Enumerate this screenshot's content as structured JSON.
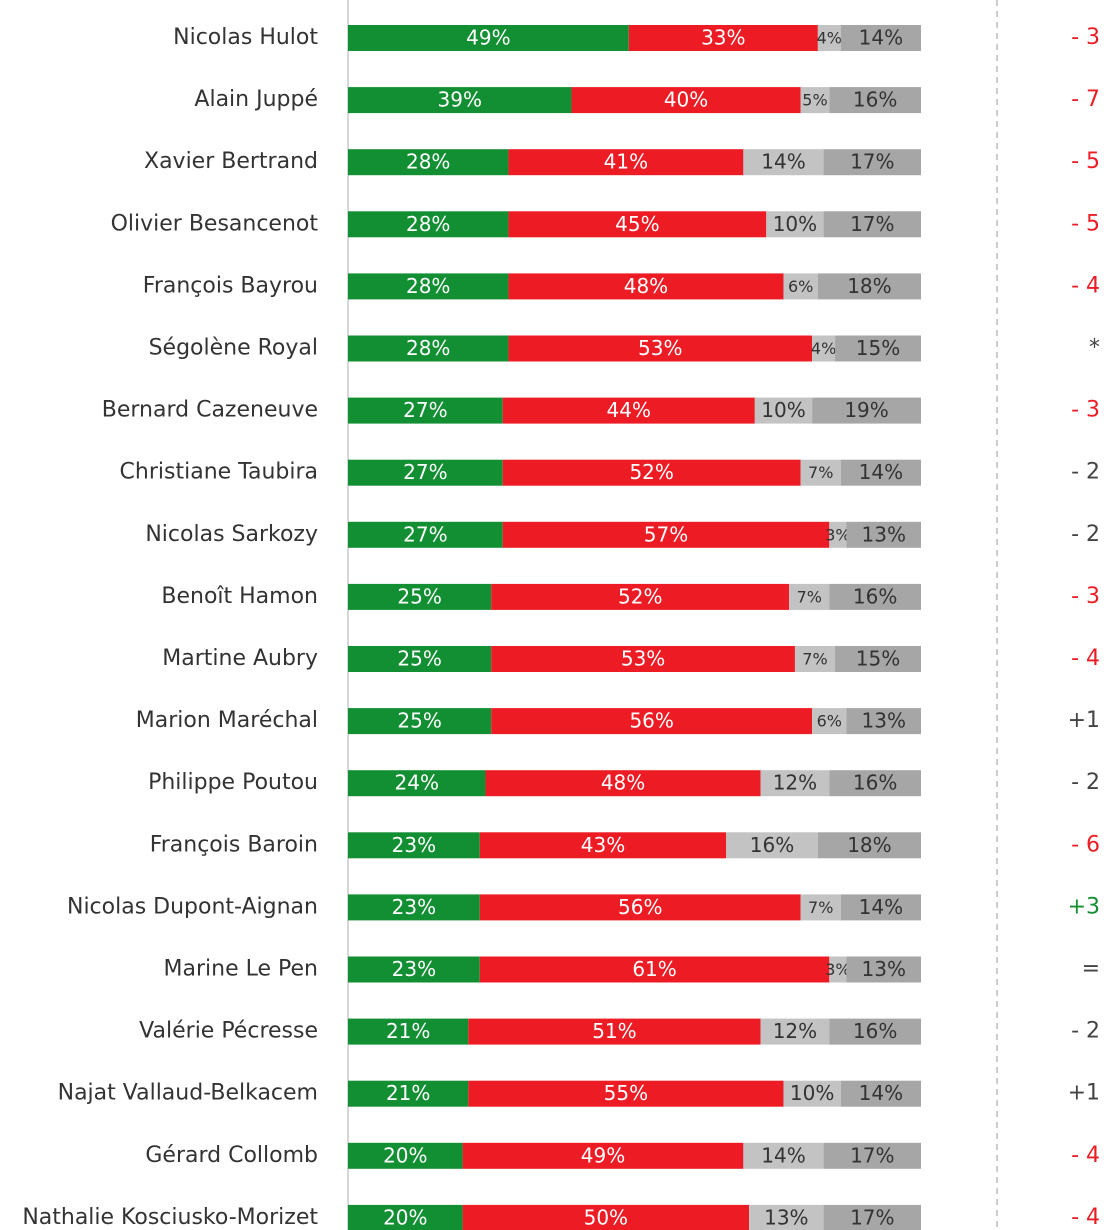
{
  "chart_data": {
    "type": "stacked_barh",
    "categories": [
      "Nicolas Hulot",
      "Alain Juppé",
      "Xavier Bertrand",
      "Olivier Besancenot",
      "François Bayrou",
      "Ségolène Royal",
      "Bernard Cazeneuve",
      "Christiane Taubira",
      "Nicolas Sarkozy",
      "Benoît Hamon",
      "Martine Aubry",
      "Marion Maréchal",
      "Philippe Poutou",
      "François Baroin",
      "Nicolas Dupont-Aignan",
      "Marine Le Pen",
      "Valérie Pécresse",
      "Najat Vallaud-Belkacem",
      "Gérard Collomb",
      "Nathalie Kosciusko-Morizet"
    ],
    "xlim": [
      0,
      100
    ],
    "series": [
      {
        "color": "#138f33",
        "label_color": "#ffffff",
        "values": [
          49,
          39,
          28,
          28,
          28,
          28,
          27,
          27,
          27,
          25,
          25,
          25,
          24,
          23,
          23,
          23,
          21,
          21,
          20,
          20
        ],
        "value_labels": [
          "49%",
          "39%",
          "28%",
          "28%",
          "28%",
          "28%",
          "27%",
          "27%",
          "27%",
          "25%",
          "25%",
          "25%",
          "24%",
          "23%",
          "23%",
          "23%",
          "21%",
          "21%",
          "20%",
          "20%"
        ]
      },
      {
        "color": "#ed1c24",
        "label_color": "#ffffff",
        "values": [
          33,
          40,
          41,
          45,
          48,
          53,
          44,
          52,
          57,
          52,
          53,
          56,
          48,
          43,
          56,
          61,
          51,
          55,
          49,
          50
        ],
        "value_labels": [
          "33%",
          "40%",
          "41%",
          "45%",
          "48%",
          "53%",
          "44%",
          "52%",
          "57%",
          "52%",
          "53%",
          "56%",
          "48%",
          "43%",
          "56%",
          "61%",
          "51%",
          "55%",
          "49%",
          "50%"
        ]
      },
      {
        "color": "#c3c3c3",
        "label_color": "#333333",
        "values": [
          4,
          5,
          14,
          10,
          6,
          4,
          10,
          7,
          3,
          7,
          7,
          6,
          12,
          16,
          7,
          3,
          12,
          10,
          14,
          13
        ],
        "value_labels": [
          "4%",
          "5%",
          "14%",
          "10%",
          "6%",
          "4%",
          "10%",
          "7%",
          "3%",
          "7%",
          "7%",
          "6%",
          "12%",
          "16%",
          "7%",
          "3%",
          "12%",
          "10%",
          "14%",
          "13%"
        ]
      },
      {
        "color": "#a6a6a6",
        "label_color": "#333333",
        "values": [
          14,
          16,
          17,
          17,
          18,
          15,
          19,
          14,
          13,
          16,
          15,
          13,
          16,
          18,
          14,
          13,
          16,
          14,
          17,
          17
        ],
        "value_labels": [
          "14%",
          "16%",
          "17%",
          "17%",
          "18%",
          "15%",
          "19%",
          "14%",
          "13%",
          "16%",
          "15%",
          "13%",
          "16%",
          "18%",
          "14%",
          "13%",
          "16%",
          "14%",
          "17%",
          "17%"
        ]
      }
    ],
    "changes": {
      "labels": [
        "- 3",
        "- 7",
        "- 5",
        "- 5",
        "- 4",
        "*",
        "- 3",
        "- 2",
        "- 2",
        "- 3",
        "- 4",
        "+1",
        "- 2",
        "- 6",
        "+3",
        "=",
        "- 2",
        "+1",
        "- 4",
        "- 4"
      ],
      "colors": [
        "#ed1c24",
        "#ed1c24",
        "#ed1c24",
        "#ed1c24",
        "#ed1c24",
        "#444444",
        "#ed1c24",
        "#444444",
        "#444444",
        "#ed1c24",
        "#ed1c24",
        "#444444",
        "#444444",
        "#ed1c24",
        "#138f33",
        "#444444",
        "#444444",
        "#444444",
        "#ed1c24",
        "#ed1c24"
      ]
    }
  }
}
